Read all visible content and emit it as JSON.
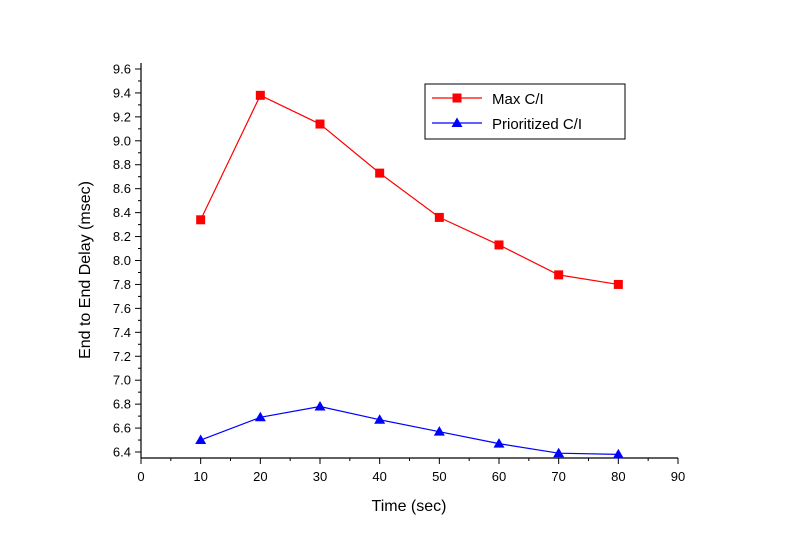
{
  "chart_data": {
    "type": "line",
    "title": "",
    "xlabel": "Time (sec)",
    "ylabel": "End to End Delay (msec)",
    "xlim": [
      0,
      90
    ],
    "ylim": [
      6.35,
      9.65
    ],
    "xticks": [
      0,
      10,
      20,
      30,
      40,
      50,
      60,
      70,
      80,
      90
    ],
    "yticks": [
      6.4,
      6.6,
      6.8,
      7.0,
      7.2,
      7.4,
      7.6,
      7.8,
      8.0,
      8.2,
      8.4,
      8.6,
      8.8,
      9.0,
      9.2,
      9.4,
      9.6
    ],
    "xtick_labels": [
      "0",
      "10",
      "20",
      "30",
      "40",
      "50",
      "60",
      "70",
      "80",
      "90"
    ],
    "ytick_labels": [
      "6.4",
      "6.6",
      "6.8",
      "7.0",
      "7.2",
      "7.4",
      "7.6",
      "7.8",
      "8.0",
      "8.2",
      "8.4",
      "8.6",
      "8.8",
      "9.0",
      "9.2",
      "9.4",
      "9.6"
    ],
    "grid": false,
    "legend_position": "top-right",
    "x": [
      10,
      20,
      30,
      40,
      50,
      60,
      70,
      80
    ],
    "series": [
      {
        "name": "Max C/I",
        "marker": "square",
        "color": "#ff0000",
        "values": [
          8.34,
          9.38,
          9.14,
          8.73,
          8.36,
          8.13,
          7.88,
          7.8
        ]
      },
      {
        "name": "Prioritized C/I",
        "marker": "triangle",
        "color": "#0000ff",
        "values": [
          6.5,
          6.69,
          6.78,
          6.67,
          6.57,
          6.47,
          6.39,
          6.38
        ]
      }
    ]
  }
}
